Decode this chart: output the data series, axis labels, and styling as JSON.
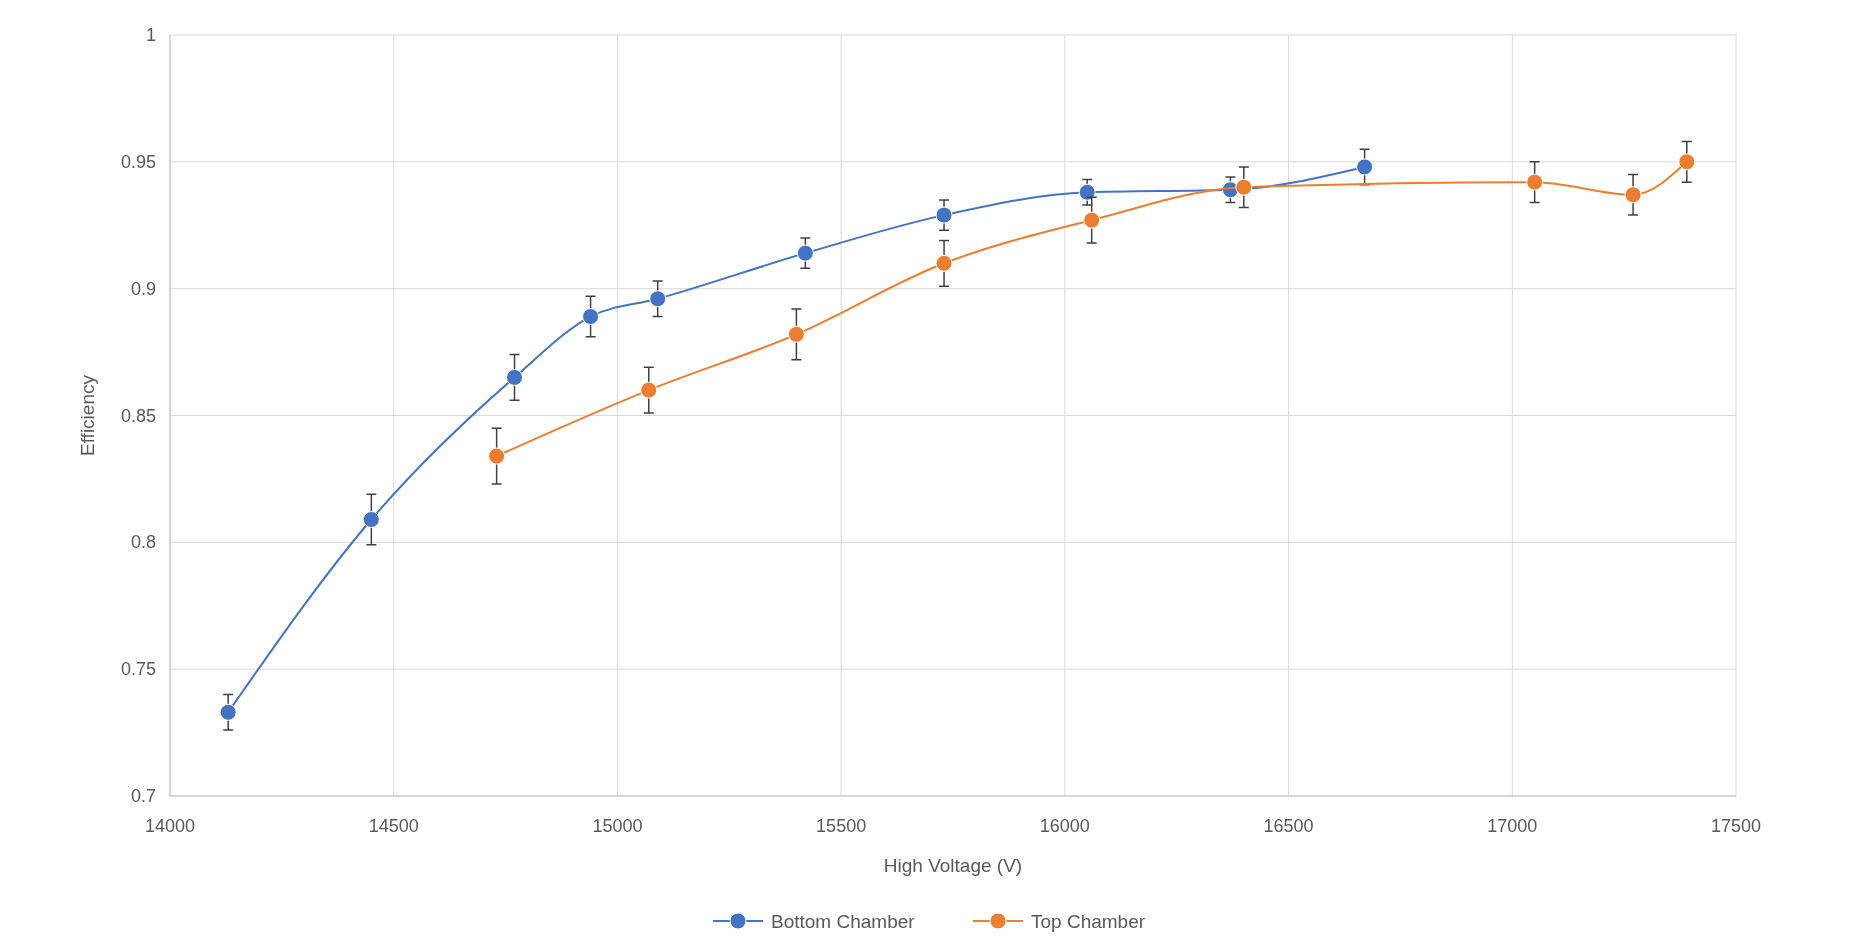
{
  "chart_data": {
    "type": "line",
    "xlabel": "High Voltage (V)",
    "ylabel": "Efficiency",
    "xlim": [
      14000,
      17500
    ],
    "xticks": [
      14000,
      14500,
      15000,
      15500,
      16000,
      16500,
      17000,
      17500
    ],
    "ylim": [
      0.7,
      1
    ],
    "yticks": [
      0.7,
      0.75,
      0.8,
      0.85,
      0.9,
      0.95,
      1
    ],
    "grid": true,
    "legend": "bottom",
    "marker": "circle",
    "line_style": "solid",
    "series": [
      {
        "name": "Bottom Chamber",
        "color": "#4472c4",
        "x": [
          14130,
          14450,
          14770,
          14940,
          15090,
          15420,
          15730,
          16050,
          16370,
          16670
        ],
        "values": [
          0.733,
          0.809,
          0.865,
          0.889,
          0.896,
          0.914,
          0.929,
          0.938,
          0.939,
          0.948
        ],
        "errors": [
          0.007,
          0.01,
          0.009,
          0.008,
          0.007,
          0.006,
          0.006,
          0.005,
          0.005,
          0.007
        ]
      },
      {
        "name": "Top Chamber",
        "color": "#ed7d31",
        "x": [
          14730,
          15070,
          15400,
          15730,
          16060,
          16400,
          17050,
          17270,
          17390
        ],
        "values": [
          0.834,
          0.86,
          0.882,
          0.91,
          0.927,
          0.94,
          0.942,
          0.937,
          0.95
        ],
        "errors": [
          0.011,
          0.009,
          0.01,
          0.009,
          0.009,
          0.008,
          0.008,
          0.008,
          0.008
        ]
      }
    ]
  }
}
